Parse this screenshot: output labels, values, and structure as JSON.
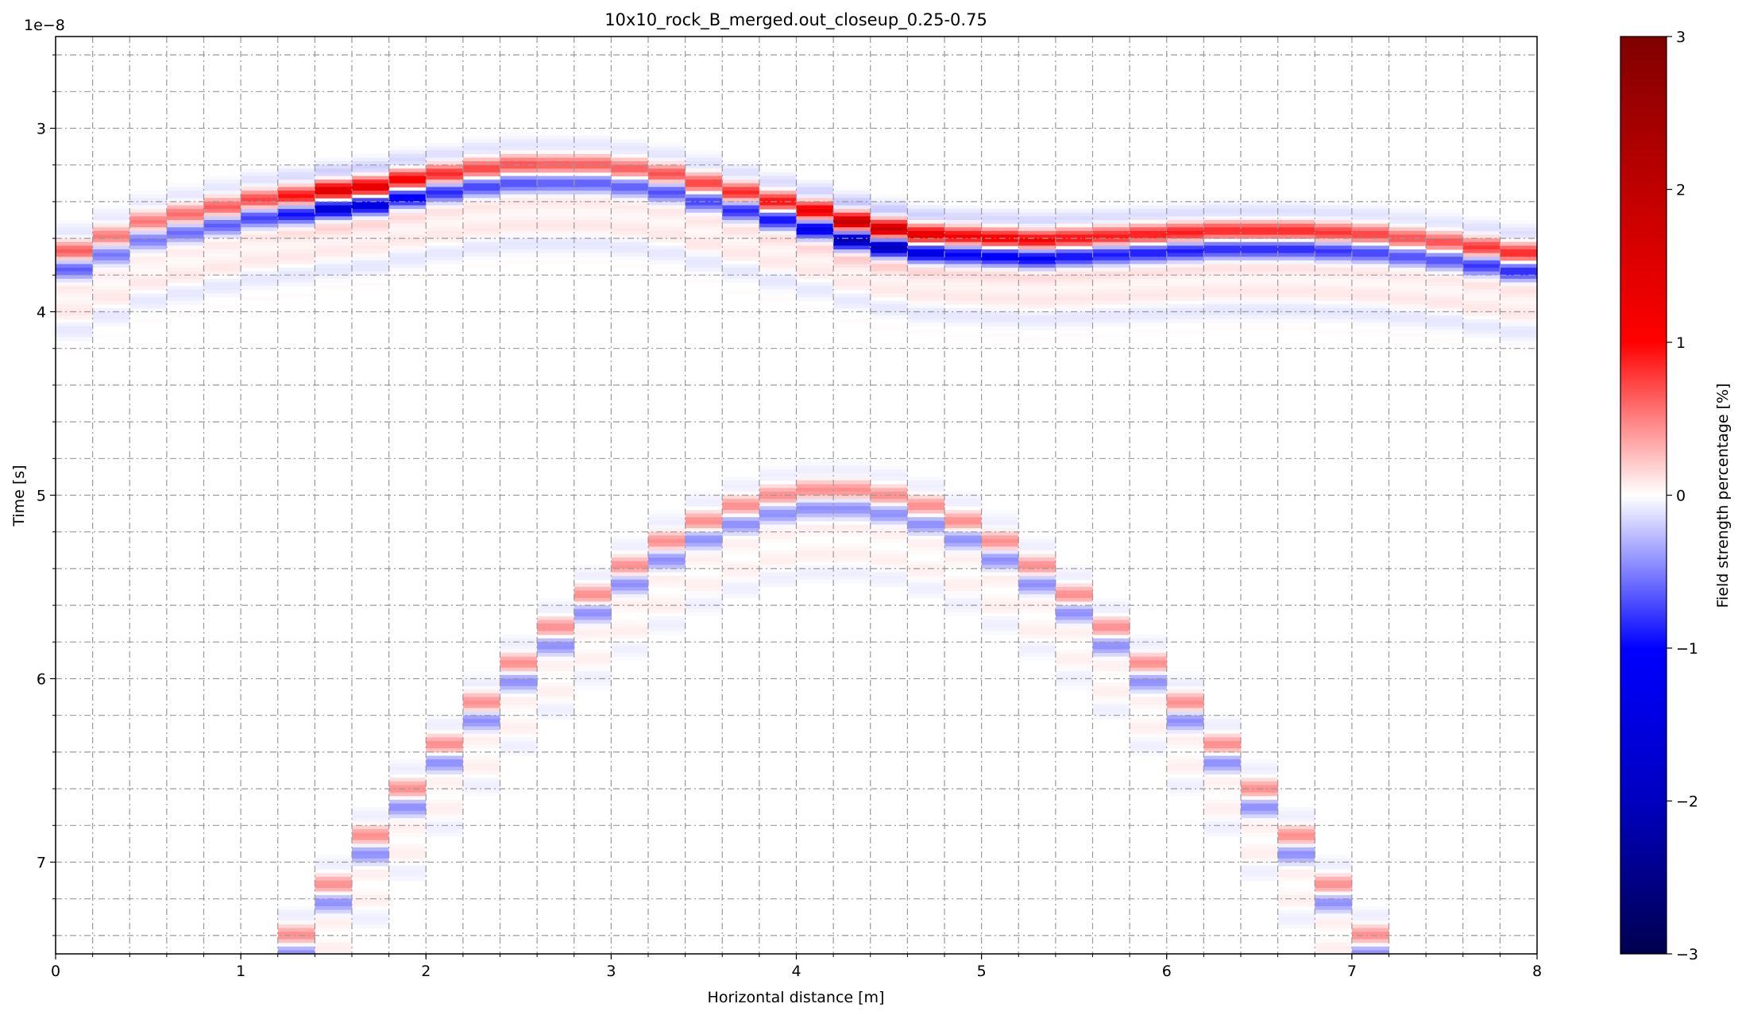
{
  "chart_data": {
    "type": "heatmap",
    "title": "10x10_rock_B_merged.out_closeup_0.25-0.75",
    "xlabel": "Horizontal distance [m]",
    "ylabel": "Time [s]",
    "y_offset_label": "1e−8",
    "colorbar_label": "Field strength percentage [%]",
    "xlim": [
      0,
      8
    ],
    "ylim": [
      7.5,
      2.5
    ],
    "y_unit_scale": 1e-08,
    "x_ticks": [
      "0",
      "1",
      "2",
      "3",
      "4",
      "5",
      "6",
      "7",
      "8"
    ],
    "y_ticks": [
      "3",
      "4",
      "5",
      "6",
      "7"
    ],
    "colorbar_ticks": [
      "3",
      "2",
      "1",
      "0",
      "−1",
      "−2",
      "−3"
    ],
    "colorbar_range": [
      -3,
      3
    ],
    "colormap": "seismic",
    "grid": true,
    "trace_spacing": 0.2,
    "x": [
      0.0,
      0.2,
      0.4,
      0.6,
      0.8,
      1.0,
      1.2,
      1.4,
      1.6,
      1.8,
      2.0,
      2.2,
      2.4,
      2.6,
      2.8,
      3.0,
      3.2,
      3.4,
      3.6,
      3.8,
      4.0,
      4.2,
      4.4,
      4.6,
      4.8,
      5.0,
      5.2,
      5.4,
      5.6,
      5.8,
      6.0,
      6.2,
      6.4,
      6.6,
      6.8,
      7.0,
      7.2,
      7.4,
      7.6,
      7.8
    ],
    "surface_reflection_time": [
      3.72,
      3.64,
      3.56,
      3.52,
      3.48,
      3.44,
      3.42,
      3.39,
      3.37,
      3.33,
      3.3,
      3.27,
      3.25,
      3.25,
      3.25,
      3.27,
      3.3,
      3.35,
      3.4,
      3.45,
      3.5,
      3.56,
      3.6,
      3.63,
      3.64,
      3.65,
      3.66,
      3.65,
      3.64,
      3.63,
      3.62,
      3.61,
      3.61,
      3.61,
      3.62,
      3.63,
      3.65,
      3.67,
      3.7,
      3.73
    ],
    "surface_reflection_amplitude": [
      1.2,
      1.0,
      1.0,
      1.1,
      1.2,
      1.4,
      1.8,
      2.4,
      2.3,
      2.0,
      1.6,
      1.4,
      1.3,
      1.2,
      1.2,
      1.2,
      1.3,
      1.4,
      1.6,
      1.8,
      2.2,
      2.8,
      2.7,
      2.3,
      2.0,
      2.0,
      2.0,
      1.8,
      1.7,
      1.7,
      1.7,
      1.6,
      1.6,
      1.6,
      1.5,
      1.4,
      1.3,
      1.3,
      1.5,
      1.6
    ],
    "hyperbola_apex_x": 4.2,
    "hyperbola_apex_time": 5.02,
    "hyperbola_amplitude": 0.7
  }
}
